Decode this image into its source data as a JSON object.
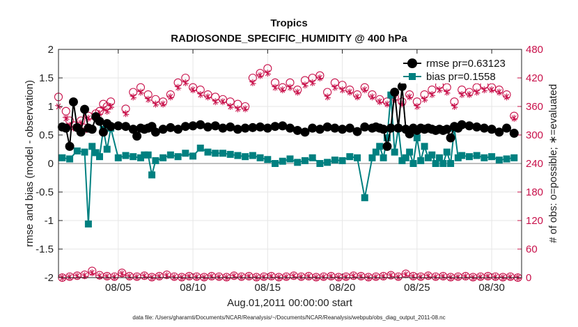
{
  "chart_data": {
    "type": "line",
    "title": "Tropics",
    "subtitle": "RADIOSONDE_SPECIFIC_HUMIDITY @ 400 hPa",
    "xlabel": "Aug.01,2011 00:00:00 start",
    "ylabel": "rmse and bias (model - observation)",
    "y2label": "# of obs: o=possible; ∗=evaluated",
    "footnote": "data file: /Users/gharamti/Documents/NCAR/Reanalysis/~/Documents/NCAR/Reanalysis/webpub/obs_diag_output_2011-08.nc",
    "xlim": [
      1,
      32
    ],
    "ylim": [
      -2,
      2
    ],
    "y2lim": [
      0,
      480
    ],
    "xticks": [
      5,
      10,
      15,
      20,
      25,
      30
    ],
    "xtick_labels": [
      "08/05",
      "08/10",
      "08/15",
      "08/20",
      "08/25",
      "08/30"
    ],
    "yticks": [
      -2,
      -1.5,
      -1,
      -0.5,
      0,
      0.5,
      1,
      1.5,
      2
    ],
    "ytick_labels": [
      "-2",
      "-1.5",
      "-1",
      "-0.5",
      "0",
      "0.5",
      "1",
      "1.5",
      "2"
    ],
    "y2ticks": [
      0,
      60,
      120,
      180,
      240,
      300,
      360,
      420,
      480
    ],
    "y2tick_labels": [
      "0",
      "60",
      "120",
      "180",
      "240",
      "300",
      "360",
      "420",
      "480"
    ],
    "legend": [
      "rmse pr=0.63123",
      "bias pr=0.1558"
    ],
    "legend_position": "top-right",
    "colors": {
      "rmse": "#000000",
      "bias": "#008080",
      "obs": "#c8104a",
      "zero": "#bfbfbf"
    },
    "series": [
      {
        "name": "rmse pr=0.63123",
        "x": [
          1.25,
          1.5,
          1.75,
          2,
          2.25,
          2.5,
          2.75,
          3,
          3.25,
          3.5,
          3.75,
          4,
          4.25,
          4.5,
          5,
          5.5,
          6,
          6.25,
          6.5,
          6.75,
          7,
          7.25,
          7.5,
          8,
          8.5,
          9,
          9.5,
          10,
          10.5,
          11,
          11.5,
          12,
          12.5,
          13,
          13.5,
          14,
          14.5,
          15,
          15.5,
          16,
          16.5,
          17,
          17.5,
          18,
          18.5,
          19,
          19.5,
          20,
          20.5,
          21,
          21.5,
          22,
          22.25,
          22.5,
          22.75,
          23,
          23.25,
          23.5,
          23.75,
          24,
          24.25,
          24.5,
          24.75,
          25,
          25.25,
          25.5,
          25.75,
          26,
          26.25,
          26.5,
          26.75,
          27,
          27.25,
          27.5,
          27.75,
          28,
          28.5,
          29,
          29.5,
          30,
          30.5,
          31,
          31.5
        ],
        "values": [
          0.64,
          0.62,
          0.3,
          1.08,
          0.63,
          0.55,
          0.95,
          0.62,
          0.6,
          0.82,
          0.74,
          0.55,
          0.7,
          0.65,
          0.66,
          0.65,
          0.6,
          0.48,
          0.62,
          0.6,
          0.62,
          0.65,
          0.55,
          0.6,
          0.63,
          0.6,
          0.65,
          0.66,
          0.68,
          0.64,
          0.66,
          0.62,
          0.64,
          0.6,
          0.62,
          0.63,
          0.64,
          0.62,
          0.65,
          0.66,
          0.62,
          0.58,
          0.55,
          0.62,
          0.6,
          0.64,
          0.62,
          0.6,
          0.62,
          0.56,
          0.64,
          0.62,
          0.64,
          0.62,
          0.6,
          0.3,
          0.62,
          1.25,
          0.62,
          1.35,
          0.6,
          0.52,
          0.62,
          0.58,
          0.62,
          0.6,
          0.62,
          0.6,
          0.58,
          0.6,
          0.58,
          0.6,
          0.45,
          0.65,
          0.62,
          0.68,
          0.66,
          0.64,
          0.62,
          0.6,
          0.55,
          0.62,
          0.53
        ]
      },
      {
        "name": "bias pr=0.1558",
        "x": [
          1.25,
          1.75,
          2.25,
          2.75,
          3,
          3.25,
          3.5,
          3.75,
          4,
          4.25,
          4.5,
          5,
          5.5,
          6,
          6.5,
          6.75,
          7,
          7.25,
          7.5,
          8,
          8.5,
          9,
          9.5,
          10,
          10.5,
          11,
          11.5,
          12,
          12.5,
          13,
          13.5,
          14,
          14.5,
          15,
          15.5,
          16,
          16.5,
          17,
          17.5,
          18,
          18.5,
          19,
          19.5,
          20,
          20.5,
          21,
          21.5,
          22,
          22.25,
          22.5,
          22.75,
          23,
          23.25,
          23.5,
          23.75,
          24,
          24.25,
          24.5,
          24.75,
          25,
          25.25,
          25.5,
          25.75,
          26,
          26.25,
          26.5,
          26.75,
          27,
          27.25,
          27.5,
          27.75,
          28,
          28.5,
          29,
          29.5,
          30,
          30.5,
          31,
          31.5
        ],
        "values": [
          0.1,
          0.08,
          0.22,
          0.2,
          -1.06,
          0.3,
          0.19,
          0.12,
          0.6,
          0.25,
          0.62,
          0.1,
          0.14,
          0.12,
          0.1,
          0.15,
          0.15,
          -0.2,
          0.05,
          0.1,
          0.15,
          0.12,
          0.18,
          0.13,
          0.27,
          0.2,
          0.18,
          0.18,
          0.16,
          0.14,
          0.12,
          0.14,
          0.1,
          0.07,
          0.0,
          0.04,
          0.08,
          0.02,
          0.05,
          0.1,
          0.0,
          0.02,
          0.06,
          0.05,
          0.12,
          0.1,
          -0.6,
          0.1,
          0.2,
          0.3,
          0.1,
          0.45,
          1.2,
          0.2,
          0.62,
          0.05,
          0.1,
          0.2,
          0.0,
          0.45,
          0.05,
          0.3,
          0.1,
          0.15,
          0.0,
          0.1,
          0.0,
          0.2,
          0.0,
          0.62,
          0.1,
          0.14,
          0.12,
          0.14,
          0.1,
          0.12,
          0.06,
          0.08,
          0.1
        ]
      },
      {
        "name": "possible obs",
        "marker": "o",
        "x": [
          1,
          1.5,
          1.75,
          2,
          2.5,
          2.75,
          3,
          3.5,
          3.75,
          4,
          4.25,
          4.5,
          5.5,
          6,
          6.5,
          7,
          7.5,
          8,
          8.5,
          9,
          9.5,
          10,
          10.5,
          11,
          11.5,
          12,
          12.5,
          13,
          13.5,
          14,
          14.5,
          15,
          15.5,
          16,
          16.5,
          17,
          17.5,
          18,
          18.5,
          19,
          19.5,
          20,
          20.5,
          21,
          21.5,
          22,
          22.5,
          23,
          23.5,
          24,
          24.5,
          25,
          25.5,
          26,
          26.5,
          27,
          27.5,
          28,
          28.5,
          29,
          29.5,
          30,
          30.5,
          31,
          31.5
        ],
        "values": [
          380,
          350,
          330,
          320,
          330,
          315,
          340,
          345,
          350,
          365,
          360,
          370,
          355,
          390,
          400,
          385,
          375,
          370,
          385,
          410,
          420,
          400,
          395,
          385,
          380,
          375,
          370,
          365,
          360,
          420,
          430,
          440,
          410,
          400,
          410,
          395,
          415,
          420,
          425,
          390,
          410,
          405,
          395,
          385,
          400,
          385,
          375,
          370,
          380,
          370,
          385,
          370,
          385,
          395,
          405,
          400,
          370,
          395,
          390,
          400,
          405,
          400,
          395,
          385,
          340
        ]
      },
      {
        "name": "evaluated obs",
        "marker": "*",
        "x": [
          1,
          1.5,
          1.75,
          2,
          2.5,
          2.75,
          3,
          3.5,
          3.75,
          4,
          4.25,
          4.5,
          5.5,
          6,
          6.5,
          7,
          7.5,
          8,
          8.5,
          9,
          9.5,
          10,
          10.5,
          11,
          11.5,
          12,
          12.5,
          13,
          13.5,
          14,
          14.5,
          15,
          15.5,
          16,
          16.5,
          17,
          17.5,
          18,
          18.5,
          19,
          19.5,
          20,
          20.5,
          21,
          21.5,
          22,
          22.5,
          23,
          23.5,
          24,
          24.5,
          25,
          25.5,
          26,
          26.5,
          27,
          27.5,
          28,
          28.5,
          29,
          29.5,
          30,
          30.5,
          31,
          31.5
        ],
        "values": [
          360,
          335,
          320,
          315,
          325,
          310,
          335,
          335,
          345,
          355,
          350,
          360,
          345,
          380,
          390,
          375,
          365,
          365,
          380,
          400,
          410,
          395,
          385,
          380,
          370,
          370,
          360,
          355,
          355,
          410,
          425,
          430,
          400,
          395,
          400,
          390,
          405,
          410,
          420,
          380,
          400,
          395,
          390,
          380,
          395,
          380,
          370,
          365,
          375,
          365,
          380,
          360,
          375,
          385,
          395,
          390,
          360,
          385,
          385,
          390,
          395,
          395,
          390,
          380,
          335
        ]
      },
      {
        "name": "possible obs (low)",
        "marker": "o",
        "x": [
          1.25,
          1.75,
          2.25,
          2.75,
          3.25,
          3.75,
          4.25,
          4.75,
          5.25,
          5.75,
          6.25,
          6.75,
          7.25,
          7.75,
          8.25,
          8.75,
          9.25,
          9.75,
          10.25,
          10.75,
          11.25,
          11.75,
          12.25,
          12.75,
          13.25,
          13.75,
          14.25,
          14.75,
          15.25,
          15.75,
          16.25,
          16.75,
          17.25,
          17.75,
          18.25,
          18.75,
          19.25,
          19.75,
          20.25,
          20.75,
          21.25,
          21.75,
          22.25,
          22.75,
          23.25,
          23.75,
          24.25,
          24.75,
          25.25,
          25.75,
          26.25,
          26.75,
          27.25,
          27.75,
          28.25,
          28.75,
          29.25,
          29.75,
          30.25,
          30.75,
          31.25,
          31.75
        ],
        "values": [
          0,
          2,
          4,
          6,
          14,
          5,
          3,
          2,
          10,
          3,
          2,
          4,
          1,
          3,
          6,
          2,
          1,
          3,
          2,
          1,
          3,
          2,
          1,
          4,
          2,
          3,
          1,
          2,
          3,
          1,
          2,
          4,
          2,
          3,
          1,
          2,
          3,
          1,
          2,
          4,
          3,
          1,
          2,
          3,
          5,
          2,
          8,
          3,
          2,
          4,
          2,
          3,
          1,
          2,
          3,
          1,
          2,
          3,
          2,
          1,
          2,
          0
        ]
      },
      {
        "name": "evaluated obs (low)",
        "marker": "*",
        "x": [
          1.25,
          1.75,
          2.25,
          2.75,
          3.25,
          3.75,
          4.25,
          4.75,
          5.25,
          5.75,
          6.25,
          6.75,
          7.25,
          7.75,
          8.25,
          8.75,
          9.25,
          9.75,
          10.25,
          10.75,
          11.25,
          11.75,
          12.25,
          12.75,
          13.25,
          13.75,
          14.25,
          14.75,
          15.25,
          15.75,
          16.25,
          16.75,
          17.25,
          17.75,
          18.25,
          18.75,
          19.25,
          19.75,
          20.25,
          20.75,
          21.25,
          21.75,
          22.25,
          22.75,
          23.25,
          23.75,
          24.25,
          24.75,
          25.25,
          25.75,
          26.25,
          26.75,
          27.25,
          27.75,
          28.25,
          28.75,
          29.25,
          29.75,
          30.25,
          30.75,
          31.25,
          31.75
        ],
        "values": [
          0,
          1,
          3,
          4,
          10,
          3,
          2,
          1,
          8,
          2,
          1,
          3,
          0,
          2,
          4,
          1,
          0,
          2,
          1,
          0,
          2,
          1,
          0,
          3,
          1,
          2,
          0,
          1,
          2,
          0,
          1,
          3,
          1,
          2,
          0,
          1,
          2,
          0,
          1,
          3,
          2,
          0,
          1,
          2,
          4,
          1,
          6,
          2,
          1,
          3,
          1,
          2,
          0,
          1,
          2,
          0,
          1,
          2,
          1,
          0,
          1,
          0
        ]
      }
    ]
  }
}
